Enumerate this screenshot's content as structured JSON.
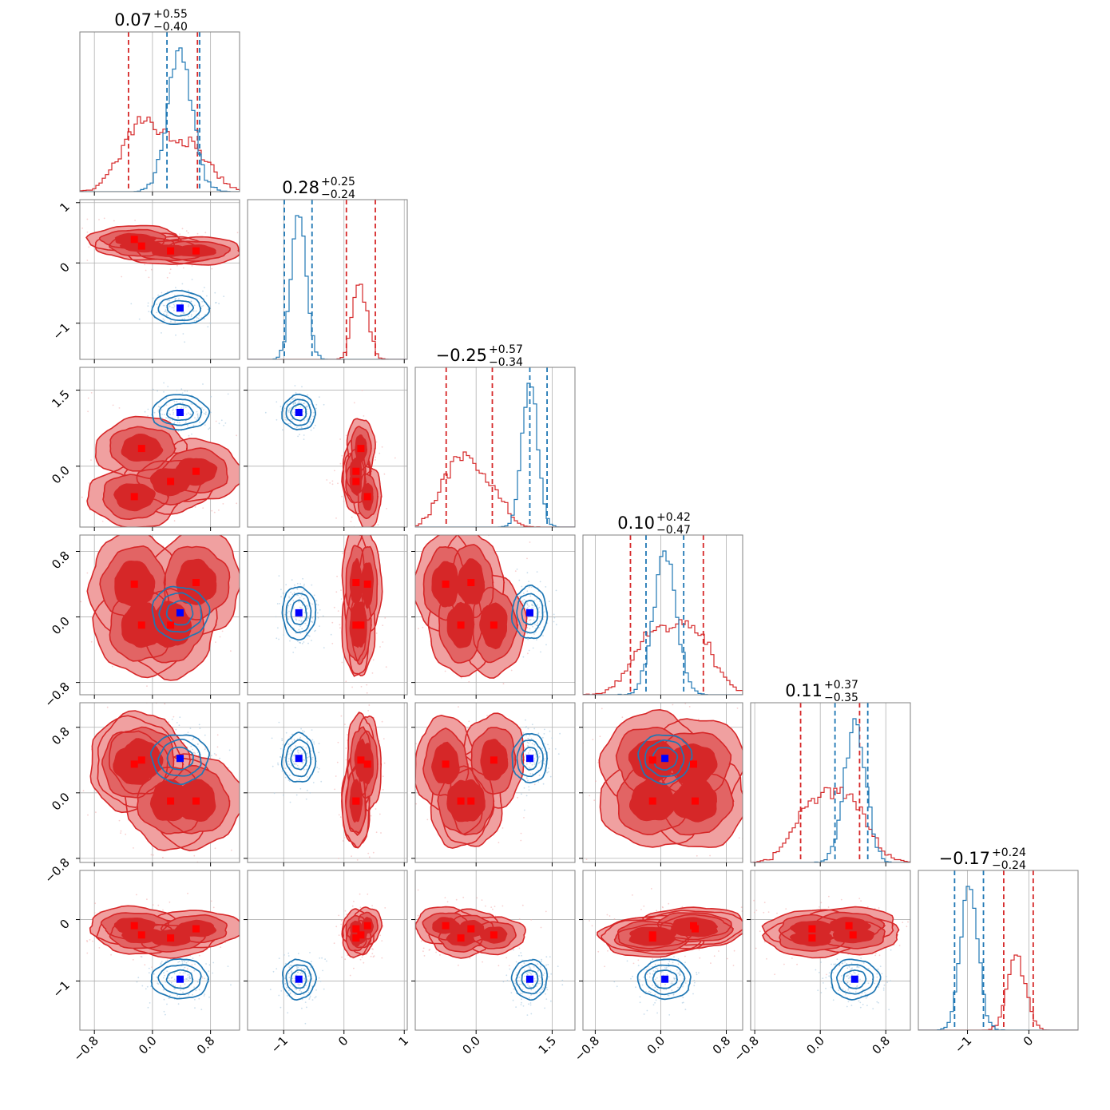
{
  "colors": {
    "red": "#d62728",
    "blue": "#1f77b4",
    "red_fill_light": "#f0a0a0",
    "red_fill_mid": "#e26464",
    "marker_red": "#ff0000",
    "marker_blue": "#0000ff",
    "grid": "#b0b0b0"
  },
  "chart_data": {
    "type": "corner",
    "dimensions": 6,
    "params": [
      {
        "title_value": "0.07",
        "title_plus": "+0.55",
        "title_minus": "−0.40",
        "range": [
          -1.0,
          1.2
        ],
        "ticks": [
          -0.8,
          0.0,
          0.8
        ],
        "tick_labels": [
          "−0.8",
          "0.0",
          "0.8"
        ]
      },
      {
        "title_value": "0.28",
        "title_plus": "+0.25",
        "title_minus": "−0.24",
        "range": [
          -1.6,
          1.05
        ],
        "ticks": [
          -1,
          0,
          1
        ],
        "tick_labels": [
          "−1",
          "0",
          "1"
        ]
      },
      {
        "title_value": "−0.25",
        "title_plus": "+0.57",
        "title_minus": "−0.34",
        "range": [
          -1.2,
          1.95
        ],
        "ticks": [
          0.0,
          1.5
        ],
        "tick_labels": [
          "0.0",
          "1.5"
        ]
      },
      {
        "title_value": "0.10",
        "title_plus": "+0.42",
        "title_minus": "−0.47",
        "range": [
          -0.95,
          1.0
        ],
        "ticks": [
          -0.8,
          0.0,
          0.8
        ],
        "tick_labels": [
          "−0.8",
          "0.0",
          "0.8"
        ]
      },
      {
        "title_value": "0.11",
        "title_plus": "+0.37",
        "title_minus": "−0.35",
        "range": [
          -0.85,
          1.1
        ],
        "ticks": [
          -0.8,
          0.0,
          0.8
        ],
        "tick_labels": [
          "−0.8",
          "0.0",
          "0.8"
        ]
      },
      {
        "title_value": "−0.17",
        "title_plus": "+0.24",
        "title_minus": "−0.24",
        "range": [
          -1.8,
          0.8
        ],
        "ticks": [
          -1,
          0
        ],
        "tick_labels": [
          "−1",
          "0"
        ]
      }
    ],
    "series": [
      {
        "color": "red",
        "filled": true,
        "modes": [
          [
            -0.25,
            0.39,
            -0.6,
            0.4,
            0.35,
            -0.1
          ],
          [
            -0.15,
            0.28,
            0.35,
            -0.1,
            0.4,
            -0.25
          ],
          [
            0.25,
            0.2,
            -0.3,
            -0.1,
            -0.1,
            -0.3
          ],
          [
            0.6,
            0.2,
            -0.1,
            0.42,
            -0.1,
            -0.15
          ]
        ],
        "spreads": [
          0.33,
          0.12,
          0.32,
          0.33,
          0.3,
          0.16
        ],
        "quantile_lines": [
          [
            -0.33,
            0.62
          ],
          [
            0.04,
            0.52
          ],
          [
            -0.59,
            0.32
          ],
          [
            -0.37,
            0.52
          ],
          [
            -0.24,
            0.48
          ],
          [
            -0.41,
            0.07
          ]
        ],
        "hist_centers": [
          -0.05,
          0.28,
          -0.3,
          0.1,
          0.11,
          -0.17
        ]
      },
      {
        "color": "blue",
        "filled": false,
        "modes": [
          [
            0.38,
            -0.75,
            1.06,
            0.05,
            0.42,
            -0.97
          ]
        ],
        "spreads": [
          0.17,
          0.12,
          0.15,
          0.14,
          0.13,
          0.14
        ],
        "quantile_lines": [
          [
            0.2,
            0.65
          ],
          [
            -0.99,
            -0.53
          ],
          [
            1.06,
            1.4
          ],
          [
            -0.18,
            0.28
          ],
          [
            0.18,
            0.58
          ],
          [
            -1.21,
            -0.74
          ]
        ],
        "hist_centers": [
          0.4,
          -0.75,
          1.2,
          0.05,
          0.38,
          -0.97
        ]
      }
    ],
    "markers": {
      "red": [
        [
          -0.25,
          0.39,
          -0.6,
          0.4,
          0.35,
          -0.1
        ],
        [
          -0.15,
          0.28,
          0.35,
          -0.1,
          0.4,
          -0.25
        ],
        [
          0.25,
          0.2,
          -0.3,
          -0.1,
          -0.1,
          -0.3
        ],
        [
          0.6,
          0.2,
          -0.1,
          0.42,
          -0.1,
          -0.15
        ]
      ],
      "blue": [
        [
          0.38,
          -0.75,
          1.06,
          0.05,
          0.42,
          -0.97
        ]
      ]
    }
  }
}
